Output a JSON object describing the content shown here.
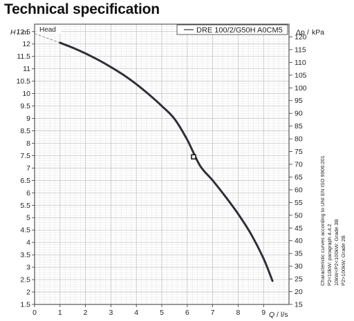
{
  "page": {
    "title": "Technical specification"
  },
  "notes": [
    "Characteristic curves according to UNI EN ISO 9906:201",
    "P2<10kW: paragraph 4.4.2",
    "10kW<P2<100kW: Grade 3B",
    "P2>100kW: Grade 2B"
  ],
  "chart_data": {
    "type": "line",
    "title": "",
    "panel_label": "Head",
    "xlabel_var": "Q",
    "xlabel_unit": "l/s",
    "ylabel_var": "H",
    "ylabel_unit": "m",
    "y2label_var": "Δp",
    "y2label_unit": "kPa",
    "xlim": [
      0,
      10
    ],
    "ylim": [
      1.5,
      12.8
    ],
    "y2lim": [
      15,
      125
    ],
    "xticks": [
      0,
      1,
      2,
      3,
      4,
      5,
      6,
      7,
      8,
      9
    ],
    "yticks": [
      1.5,
      2,
      2.5,
      3,
      3.5,
      4,
      4.5,
      5,
      5.5,
      6,
      6.5,
      7,
      7.5,
      8,
      8.5,
      9,
      9.5,
      10,
      10.5,
      11,
      11.5,
      12,
      12.5
    ],
    "y2ticks": [
      15,
      20,
      25,
      30,
      35,
      40,
      45,
      50,
      55,
      60,
      65,
      70,
      75,
      80,
      85,
      90,
      95,
      100,
      105,
      110,
      115,
      120
    ],
    "grid": true,
    "legend_position": "top-right",
    "series": [
      {
        "name": "DRE 100/2/G50H A0CM5",
        "color": "#2f3138",
        "x": [
          1,
          1.5,
          2,
          2.5,
          3,
          3.5,
          4,
          4.5,
          5,
          5.5,
          6,
          6.5,
          7,
          7.5,
          8,
          8.5,
          9,
          9.35
        ],
        "y": [
          12.05,
          11.85,
          11.62,
          11.36,
          11.07,
          10.75,
          10.38,
          9.96,
          9.5,
          8.98,
          8.14,
          7.1,
          6.5,
          5.85,
          5.15,
          4.35,
          3.35,
          2.45
        ]
      }
    ],
    "extrapolated": {
      "x": [
        0,
        1
      ],
      "y": [
        12.42,
        12.05
      ]
    },
    "duty_point": {
      "x": 6.25,
      "y": 7.45
    }
  }
}
